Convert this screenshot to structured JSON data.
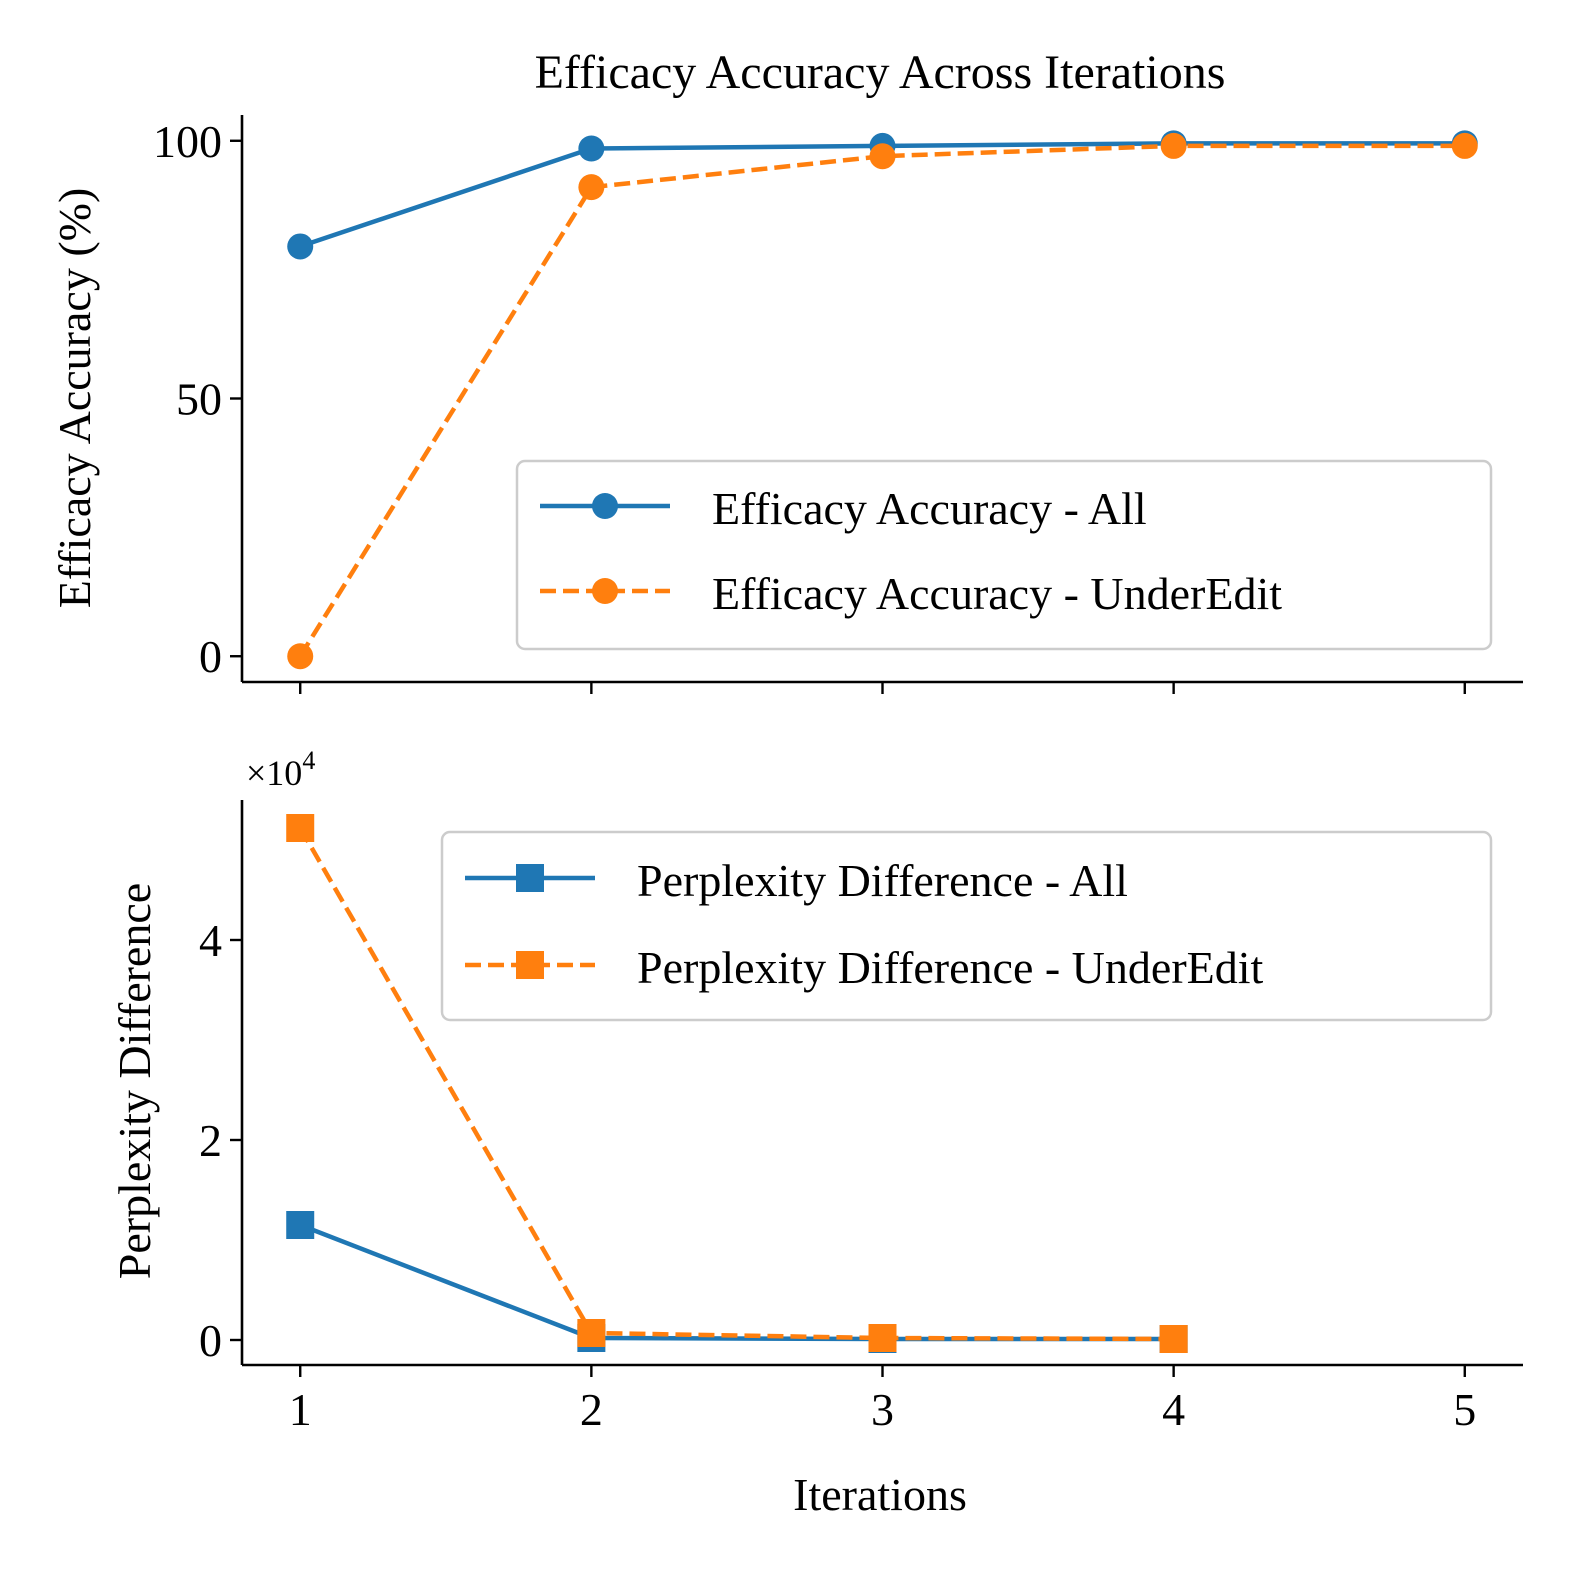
{
  "colors": {
    "all": "#1f77b4",
    "underedit": "#ff7f0e"
  },
  "chart_data": [
    {
      "type": "line",
      "title": "Efficacy Accuracy Across Iterations",
      "xlabel": "",
      "ylabel": "Efficacy Accuracy (%)",
      "x": [
        1,
        2,
        3,
        4,
        5
      ],
      "xlim": [
        0.8,
        5.2
      ],
      "ylim": [
        -5,
        105
      ],
      "yticks": [
        0,
        50,
        100
      ],
      "ytick_labels": [
        "0",
        "50",
        "100"
      ],
      "marker": "circle",
      "legend_position": "center-right",
      "series": [
        {
          "name": "Efficacy Accuracy - All",
          "style": "solid",
          "color_key": "all",
          "values": [
            79.5,
            98.5,
            99.0,
            99.5,
            99.5
          ]
        },
        {
          "name": "Efficacy Accuracy - UnderEdit",
          "style": "dashed",
          "color_key": "underedit",
          "values": [
            0,
            91,
            97,
            99,
            99
          ]
        }
      ]
    },
    {
      "type": "line",
      "title": "",
      "xlabel": "Iterations",
      "ylabel": "Perplexity Difference",
      "offset_text": "×10",
      "offset_exponent": "4",
      "x": [
        1,
        2,
        3,
        4,
        5
      ],
      "xticks": [
        1,
        2,
        3,
        4,
        5
      ],
      "xtick_labels": [
        "1",
        "2",
        "3",
        "4",
        "5"
      ],
      "xlim": [
        0.8,
        5.2
      ],
      "ylim": [
        -0.25,
        5.4
      ],
      "yticks": [
        0,
        2,
        4
      ],
      "ytick_labels": [
        "0",
        "2",
        "4"
      ],
      "marker": "square",
      "legend_position": "upper-right",
      "series": [
        {
          "name": "Perplexity Difference - All",
          "style": "solid",
          "color_key": "all",
          "x": [
            1,
            2,
            3,
            4
          ],
          "values": [
            1.15,
            0.02,
            0.01,
            0.01
          ]
        },
        {
          "name": "Perplexity Difference - UnderEdit",
          "style": "dashed",
          "color_key": "underedit",
          "x": [
            1,
            2,
            3,
            4
          ],
          "values": [
            5.12,
            0.07,
            0.02,
            0.01
          ]
        }
      ]
    }
  ]
}
